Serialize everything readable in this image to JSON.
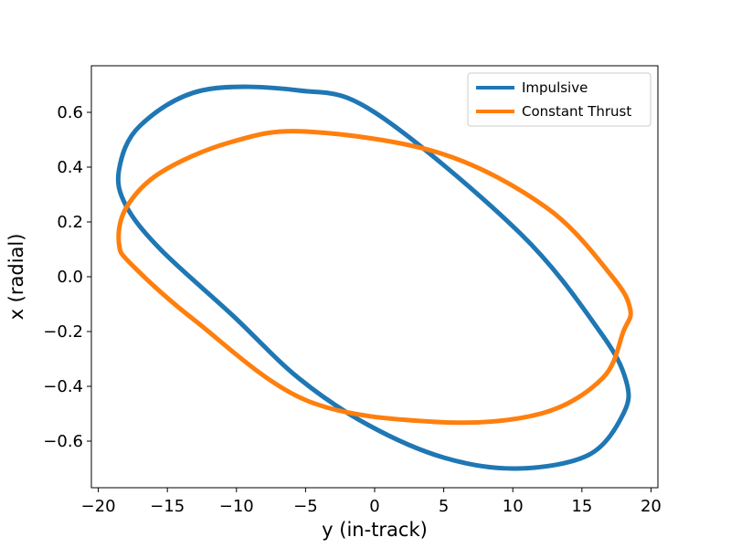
{
  "chart_data": {
    "type": "line",
    "title": "",
    "xlabel": "y (in-track)",
    "ylabel": "x (radial)",
    "xlim": [
      -20.5,
      20.5
    ],
    "ylim": [
      -0.77,
      0.77
    ],
    "xticks": [
      -20,
      -15,
      -10,
      -5,
      0,
      5,
      10,
      15,
      20
    ],
    "yticks": [
      -0.6,
      -0.4,
      -0.2,
      0.0,
      0.2,
      0.4,
      0.6
    ],
    "xtick_labels": [
      "−20",
      "−15",
      "−10",
      "−5",
      "0",
      "5",
      "10",
      "15",
      "20"
    ],
    "ytick_labels": [
      "−0.6",
      "−0.4",
      "−0.2",
      "0.0",
      "0.2",
      "0.4",
      "0.6"
    ],
    "grid": false,
    "legend_position": "top-right",
    "series": [
      {
        "name": "Impulsive",
        "color": "#1f77b4",
        "closed": true,
        "x": [
          10.3,
          15.5,
          18.0,
          18.2,
          16.3,
          10.5,
          0.0,
          -5.5,
          -12.5,
          -17.0,
          -18.5,
          -18.0,
          -15.5,
          -10.3,
          -5.5,
          -0.5,
          5.0,
          10.3
        ],
        "y": [
          -0.7,
          -0.65,
          -0.5,
          -0.38,
          -0.2,
          0.16,
          0.6,
          0.68,
          0.68,
          0.55,
          0.39,
          0.26,
          0.1,
          -0.14,
          -0.37,
          -0.54,
          -0.66,
          -0.7
        ]
      },
      {
        "name": "Constant Thrust",
        "color": "#ff7f0e",
        "closed": true,
        "x": [
          -5.0,
          -10.5,
          -15.5,
          -18.0,
          -18.5,
          -17.5,
          -13.0,
          -5.0,
          4.5,
          12.0,
          16.5,
          18.0,
          18.5,
          17.2,
          12.5,
          4.8,
          -5.0
        ],
        "y": [
          0.53,
          0.49,
          0.38,
          0.25,
          0.12,
          0.04,
          -0.16,
          -0.45,
          -0.53,
          -0.5,
          -0.37,
          -0.2,
          -0.12,
          0.0,
          0.25,
          0.45,
          0.53
        ]
      }
    ]
  }
}
